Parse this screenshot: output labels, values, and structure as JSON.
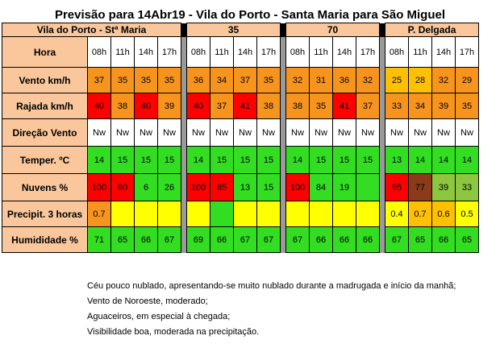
{
  "title": "Previsão para 14Abr19 - Vila do Porto - Santa Maria para São Miguel",
  "sections": [
    "Vila do Porto - Stª Maria",
    "35",
    "70",
    "P. Delgada"
  ],
  "rows": [
    {
      "label": "Hora",
      "height": 38,
      "groups": [
        [
          {
            "v": "08h",
            "c": "#ffffff"
          },
          {
            "v": "11h",
            "c": "#ffffff"
          },
          {
            "v": "14h",
            "c": "#ffffff"
          },
          {
            "v": "17h",
            "c": "#ffffff"
          }
        ],
        [
          {
            "v": "08h",
            "c": "#ffffff"
          },
          {
            "v": "11h",
            "c": "#ffffff"
          },
          {
            "v": "14h",
            "c": "#ffffff"
          },
          {
            "v": "17h",
            "c": "#ffffff"
          }
        ],
        [
          {
            "v": "08h",
            "c": "#ffffff"
          },
          {
            "v": "11h",
            "c": "#ffffff"
          },
          {
            "v": "14h",
            "c": "#ffffff"
          },
          {
            "v": "17h",
            "c": "#ffffff"
          }
        ],
        [
          {
            "v": "08h",
            "c": "#ffffff"
          },
          {
            "v": "11h",
            "c": "#ffffff"
          },
          {
            "v": "14h",
            "c": "#ffffff"
          },
          {
            "v": "17h",
            "c": "#ffffff"
          }
        ]
      ]
    },
    {
      "label": "Vento km/h",
      "height": 32,
      "groups": [
        [
          {
            "v": "37",
            "c": "#f7941d"
          },
          {
            "v": "35",
            "c": "#f7941d"
          },
          {
            "v": "35",
            "c": "#f7941d"
          },
          {
            "v": "35",
            "c": "#f7941d"
          }
        ],
        [
          {
            "v": "36",
            "c": "#f7941d"
          },
          {
            "v": "34",
            "c": "#f7941d"
          },
          {
            "v": "37",
            "c": "#f7941d"
          },
          {
            "v": "35",
            "c": "#f7941d"
          }
        ],
        [
          {
            "v": "32",
            "c": "#f7941d"
          },
          {
            "v": "31",
            "c": "#f7941d"
          },
          {
            "v": "36",
            "c": "#f7941d"
          },
          {
            "v": "32",
            "c": "#f7941d"
          }
        ],
        [
          {
            "v": "25",
            "c": "#ffc000"
          },
          {
            "v": "28",
            "c": "#ffc000"
          },
          {
            "v": "32",
            "c": "#f7941d"
          },
          {
            "v": "29",
            "c": "#f7941d"
          }
        ]
      ]
    },
    {
      "label": "Rajada km/h",
      "height": 32,
      "groups": [
        [
          {
            "v": "40",
            "c": "#ff0000"
          },
          {
            "v": "38",
            "c": "#f7941d"
          },
          {
            "v": "40",
            "c": "#ff0000"
          },
          {
            "v": "39",
            "c": "#f7941d"
          }
        ],
        [
          {
            "v": "40",
            "c": "#ff0000"
          },
          {
            "v": "37",
            "c": "#f7941d"
          },
          {
            "v": "41",
            "c": "#ff0000"
          },
          {
            "v": "38",
            "c": "#f7941d"
          }
        ],
        [
          {
            "v": "38",
            "c": "#f7941d"
          },
          {
            "v": "35",
            "c": "#f7941d"
          },
          {
            "v": "41",
            "c": "#ff0000"
          },
          {
            "v": "37",
            "c": "#f7941d"
          }
        ],
        [
          {
            "v": "33",
            "c": "#f7941d"
          },
          {
            "v": "34",
            "c": "#f7941d"
          },
          {
            "v": "39",
            "c": "#f7941d"
          },
          {
            "v": "35",
            "c": "#f7941d"
          }
        ]
      ]
    },
    {
      "label": "Direção  Vento",
      "height": 34,
      "groups": [
        [
          {
            "v": "Nw",
            "c": "#ffffff"
          },
          {
            "v": "Nw",
            "c": "#ffffff"
          },
          {
            "v": "Nw",
            "c": "#ffffff"
          },
          {
            "v": "Nw",
            "c": "#ffffff"
          }
        ],
        [
          {
            "v": "Nw",
            "c": "#ffffff"
          },
          {
            "v": "Nw",
            "c": "#ffffff"
          },
          {
            "v": "Nw",
            "c": "#ffffff"
          },
          {
            "v": "Nw",
            "c": "#ffffff"
          }
        ],
        [
          {
            "v": "Nw",
            "c": "#ffffff"
          },
          {
            "v": "Nw",
            "c": "#ffffff"
          },
          {
            "v": "Nw",
            "c": "#ffffff"
          },
          {
            "v": "Nw",
            "c": "#ffffff"
          }
        ],
        [
          {
            "v": "Nw",
            "c": "#ffffff"
          },
          {
            "v": "Nw",
            "c": "#ffffff"
          },
          {
            "v": "Nw",
            "c": "#ffffff"
          },
          {
            "v": "Nw",
            "c": "#ffffff"
          }
        ]
      ]
    },
    {
      "label": "Temper. ºC",
      "height": 34,
      "groups": [
        [
          {
            "v": "14",
            "c": "#33dd22"
          },
          {
            "v": "15",
            "c": "#33dd22"
          },
          {
            "v": "15",
            "c": "#33dd22"
          },
          {
            "v": "15",
            "c": "#33dd22"
          }
        ],
        [
          {
            "v": "14",
            "c": "#33dd22"
          },
          {
            "v": "15",
            "c": "#33dd22"
          },
          {
            "v": "15",
            "c": "#33dd22"
          },
          {
            "v": "15",
            "c": "#33dd22"
          }
        ],
        [
          {
            "v": "14",
            "c": "#33dd22"
          },
          {
            "v": "15",
            "c": "#33dd22"
          },
          {
            "v": "15",
            "c": "#33dd22"
          },
          {
            "v": "15",
            "c": "#33dd22"
          }
        ],
        [
          {
            "v": "13",
            "c": "#33dd22"
          },
          {
            "v": "14",
            "c": "#33dd22"
          },
          {
            "v": "14",
            "c": "#33dd22"
          },
          {
            "v": "14",
            "c": "#33dd22"
          }
        ]
      ]
    },
    {
      "label": "Nuvens %",
      "height": 34,
      "groups": [
        [
          {
            "v": "100",
            "c": "#ff0000"
          },
          {
            "v": "90",
            "c": "#ff0000"
          },
          {
            "v": "6",
            "c": "#33dd22"
          },
          {
            "v": "26",
            "c": "#33dd22"
          }
        ],
        [
          {
            "v": "100",
            "c": "#ff0000"
          },
          {
            "v": "85",
            "c": "#ff0000"
          },
          {
            "v": "13",
            "c": "#33dd22"
          },
          {
            "v": "15",
            "c": "#33dd22"
          }
        ],
        [
          {
            "v": "100",
            "c": "#ff0000"
          },
          {
            "v": "84",
            "c": "#33dd22"
          },
          {
            "v": "19",
            "c": "#33dd22"
          },
          {
            "v": "",
            "c": "#33dd22"
          }
        ],
        [
          {
            "v": "95",
            "c": "#ff0000"
          },
          {
            "v": "77",
            "c": "#8b3a1a"
          },
          {
            "v": "39",
            "c": "#8dc63f"
          },
          {
            "v": "33",
            "c": "#8dc63f"
          }
        ]
      ]
    },
    {
      "label": "Precipit.    3 horas",
      "height": 32,
      "groups": [
        [
          {
            "v": "0.7",
            "c": "#f7941d"
          },
          {
            "v": "",
            "c": "#ffff00"
          },
          {
            "v": "",
            "c": "#ffff00"
          },
          {
            "v": "",
            "c": "#ffff00"
          }
        ],
        [
          {
            "v": "",
            "c": "#ffff00"
          },
          {
            "v": "",
            "c": "#33dd22"
          },
          {
            "v": "",
            "c": "#ffff00"
          },
          {
            "v": "",
            "c": "#ffff00"
          }
        ],
        [
          {
            "v": "",
            "c": "#ffff00"
          },
          {
            "v": "",
            "c": "#ffff00"
          },
          {
            "v": "",
            "c": "#ffff00"
          },
          {
            "v": "",
            "c": "#ffff00"
          }
        ],
        [
          {
            "v": "0.4",
            "c": "#ffff00"
          },
          {
            "v": "0.7",
            "c": "#ffc000"
          },
          {
            "v": "0.6",
            "c": "#ffc000"
          },
          {
            "v": "0.5",
            "c": "#ffff00"
          }
        ]
      ]
    },
    {
      "label": "Humididade %",
      "height": 32,
      "groups": [
        [
          {
            "v": "71",
            "c": "#33dd22"
          },
          {
            "v": "65",
            "c": "#33dd22"
          },
          {
            "v": "66",
            "c": "#33dd22"
          },
          {
            "v": "67",
            "c": "#33dd22"
          }
        ],
        [
          {
            "v": "69",
            "c": "#33dd22"
          },
          {
            "v": "66",
            "c": "#33dd22"
          },
          {
            "v": "67",
            "c": "#33dd22"
          },
          {
            "v": "67",
            "c": "#33dd22"
          }
        ],
        [
          {
            "v": "67",
            "c": "#33dd22"
          },
          {
            "v": "66",
            "c": "#33dd22"
          },
          {
            "v": "66",
            "c": "#33dd22"
          },
          {
            "v": "66",
            "c": "#33dd22"
          }
        ],
        [
          {
            "v": "67",
            "c": "#33dd22"
          },
          {
            "v": "65",
            "c": "#33dd22"
          },
          {
            "v": "66",
            "c": "#33dd22"
          },
          {
            "v": "65",
            "c": "#33dd22"
          }
        ]
      ]
    }
  ],
  "notes": [
    "Céu pouco nublado, apresentando-se muito nublado durante a madrugada e início da manhã;",
    "Vento de Noroeste, moderado;",
    "Aguaceiros, em especial à chegada;",
    "Visibilidade boa, moderada na precipitação."
  ]
}
